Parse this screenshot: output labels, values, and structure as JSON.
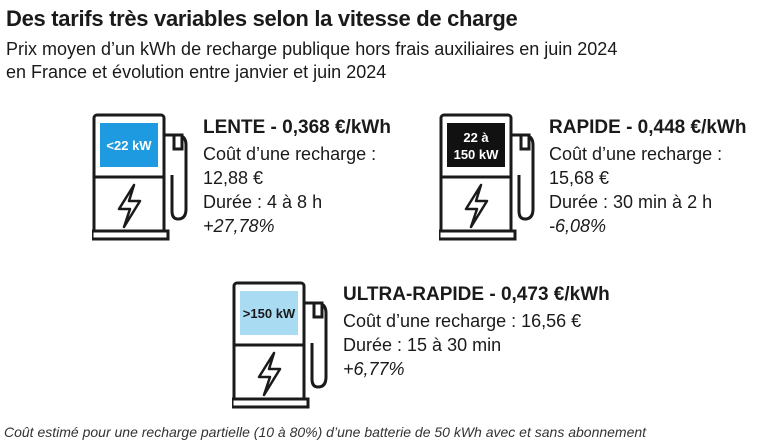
{
  "title": "Des tarifs très variables selon la vitesse de charge",
  "subtitle_line1": "Prix moyen d’un kWh de recharge publique hors frais auxiliaires en juin 2024",
  "subtitle_line2": "en France et évolution entre janvier et juin 2024",
  "colors": {
    "lente_screen": "#1e9be0",
    "rapide_screen": "#111111",
    "ultra_screen": "#a9dbf2",
    "outline": "#1a1a1a"
  },
  "chargers": {
    "lente": {
      "screen_label": "<22 kW",
      "heading": "LENTE - 0,368 €/kWh",
      "cost_label": "Coût d’une recharge :",
      "cost_value": "12,88 €",
      "duration": "Durée : 4 à 8 h",
      "change": "+27,78%",
      "icon": "lightning-icon"
    },
    "rapide": {
      "screen_label_line1": "22 à",
      "screen_label_line2": "150 kW",
      "heading": "RAPIDE - 0,448 €/kWh",
      "cost_label": "Coût d’une recharge :",
      "cost_value": "15,68 €",
      "duration": "Durée : 30 min à 2 h",
      "change": "-6,08%",
      "icon": "lightning-icon"
    },
    "ultra": {
      "screen_label": ">150 kW",
      "heading": "ULTRA-RAPIDE - 0,473 €/kWh",
      "cost": "Coût d’une recharge : 16,56 €",
      "duration": "Durée : 15 à 30 min",
      "change": "+6,77%",
      "icon": "lightning-icon"
    }
  },
  "footnote": "Coût estimé pour une recharge partielle (10 à 80%) d’une batterie de 50 kWh avec et sans abonnement"
}
